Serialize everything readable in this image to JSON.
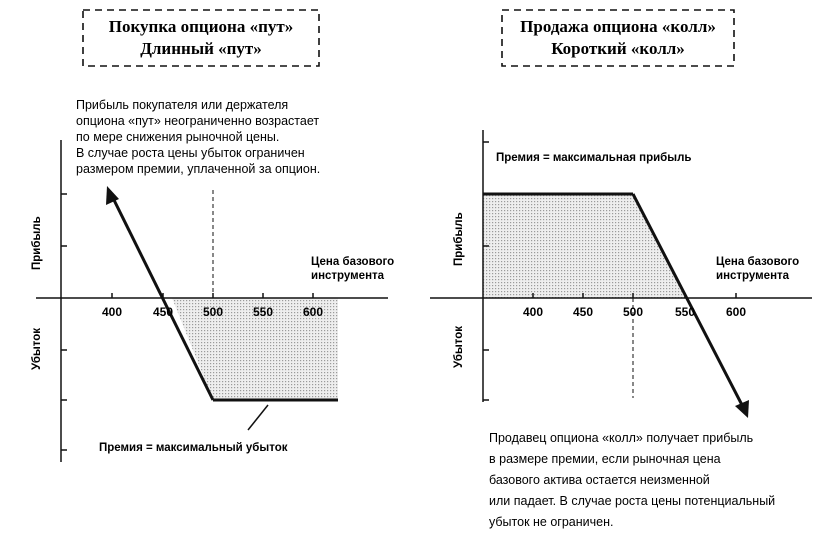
{
  "left": {
    "title_line1": "Покупка опциона «пут»",
    "title_line2": "Длинный «пут»",
    "note_lines": [
      "Прибыль покупателя или держателя",
      "опциона «пут» неограниченно возрастает",
      "по мере снижения рыночной цены.",
      "В случае роста цены убыток ограничен",
      "размером премии, уплаченной за опцион."
    ],
    "x_axis_label_line1": "Цена базового",
    "x_axis_label_line2": "инструмента",
    "profit_label": "Прибыль",
    "loss_label": "Убыток",
    "ticks": [
      "400",
      "450",
      "500",
      "550",
      "600"
    ],
    "premium_label": "Премия = максимальный убыток"
  },
  "right": {
    "title_line1": "Продажа опциона «колл»",
    "title_line2": "Короткий «колл»",
    "premium_label": "Премия = максимальная прибыль",
    "x_axis_label_line1": "Цена базового",
    "x_axis_label_line2": "инструмента",
    "profit_label": "Прибыль",
    "loss_label": "Убыток",
    "ticks": [
      "400",
      "450",
      "500",
      "550",
      "600"
    ],
    "note_lines": [
      "Продавец опциона «колл» получает прибыль",
      "в размере премии, если рыночная цена",
      "базового актива остается неизменной",
      "или падает. В случае роста цены потенциальный",
      "убыток не ограничен."
    ]
  },
  "colors": {
    "ink": "#111111",
    "shade": "#d9d9d9"
  }
}
